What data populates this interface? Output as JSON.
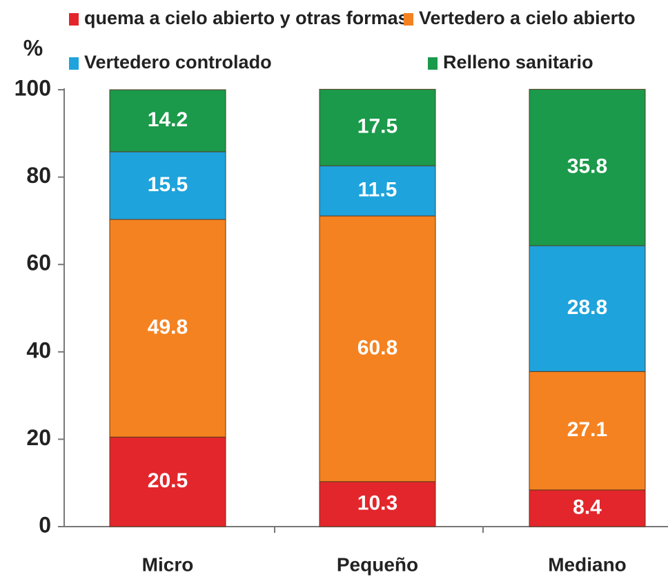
{
  "chart_data": {
    "type": "stacked_bar",
    "y_label": "%",
    "categories": [
      "Micro",
      "Pequeño",
      "Mediano"
    ],
    "series": [
      {
        "name": "quema a cielo abierto y otras formas",
        "color": "#e3262b",
        "values": [
          20.5,
          10.3,
          8.4
        ]
      },
      {
        "name": "Vertedero a cielo abierto",
        "color": "#f58220",
        "values": [
          49.8,
          60.8,
          27.1
        ]
      },
      {
        "name": "Vertedero controlado",
        "color": "#1ea3dc",
        "values": [
          15.5,
          11.5,
          28.8
        ]
      },
      {
        "name": "Relleno sanitario",
        "color": "#1a9a4a",
        "values": [
          14.2,
          17.5,
          35.8
        ]
      }
    ],
    "ylim": [
      0,
      100
    ],
    "yticks": [
      0,
      20,
      40,
      60,
      80,
      100
    ],
    "legend": "top"
  }
}
